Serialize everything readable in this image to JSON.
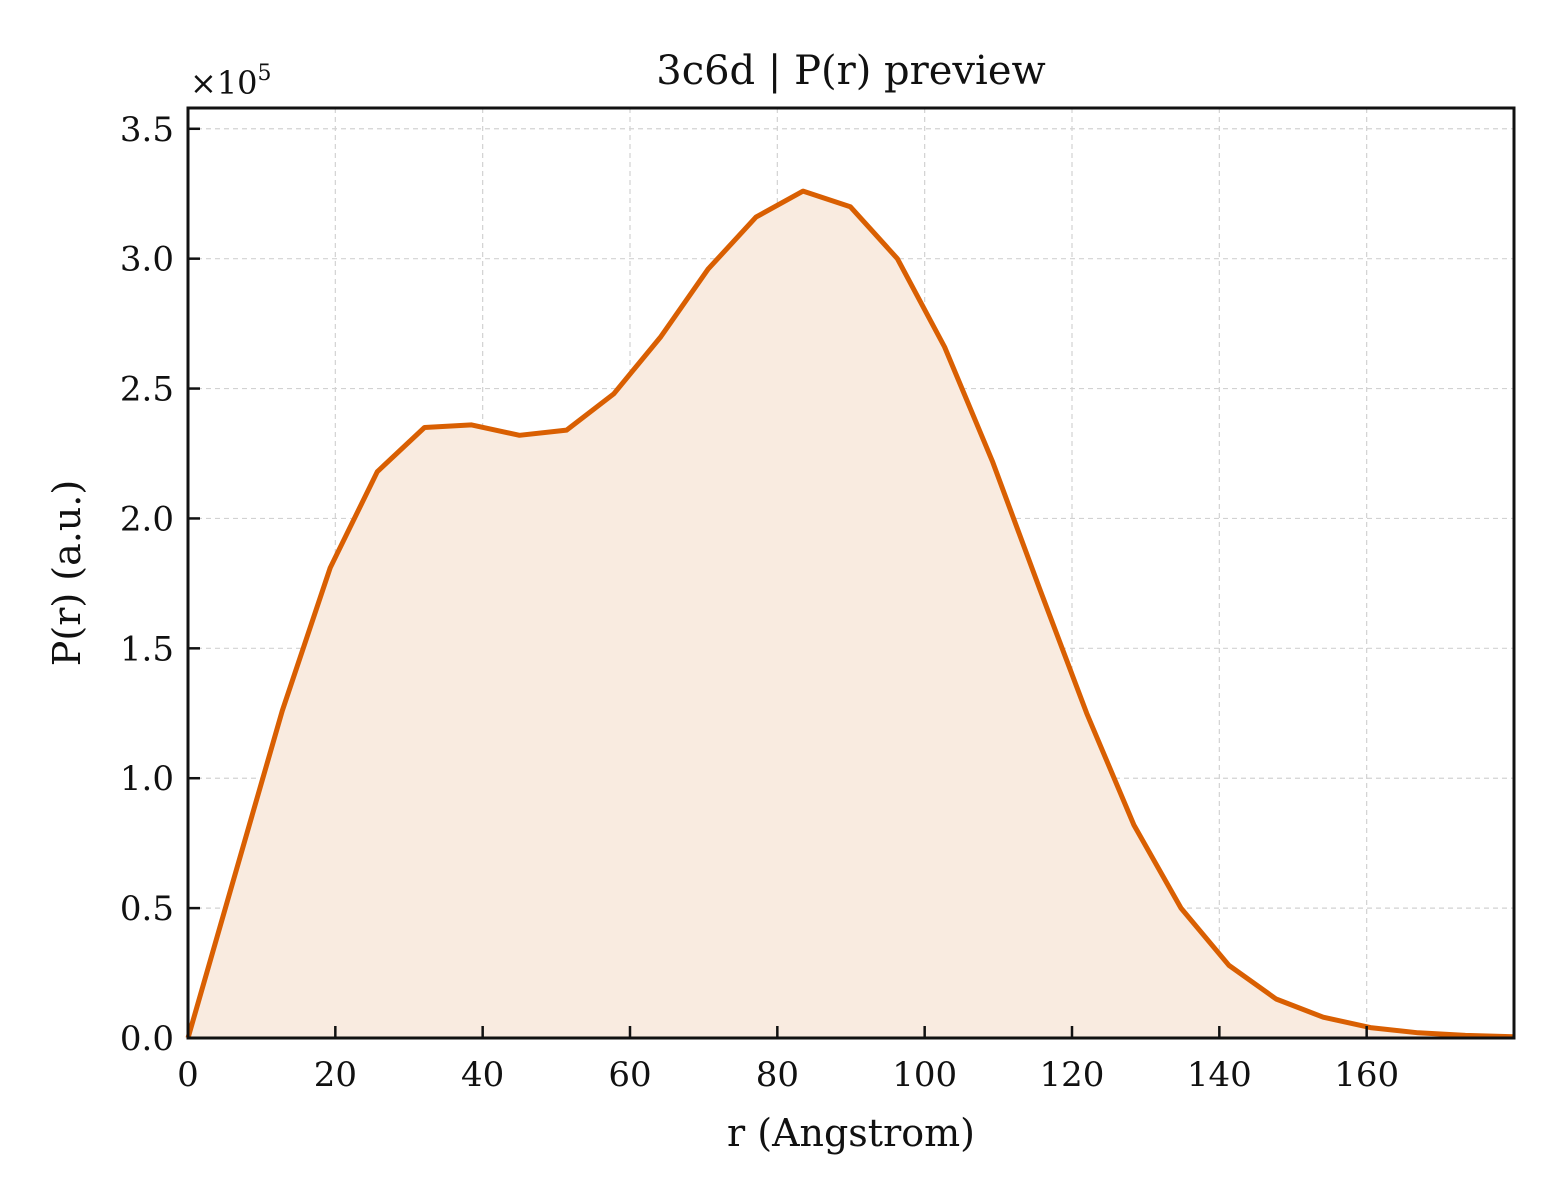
{
  "chart_data": {
    "type": "area",
    "title": "3c6d | P(r) preview",
    "xlabel": "r (Angstrom)",
    "ylabel": "P(r) (a.u.)",
    "y_multiplier": "×10",
    "y_multiplier_exponent": "5",
    "xlim": [
      0,
      180
    ],
    "ylim": [
      0,
      3.58
    ],
    "x_ticks": [
      0,
      20,
      40,
      60,
      80,
      100,
      120,
      140,
      160
    ],
    "x_tick_labels": [
      "0",
      "20",
      "40",
      "60",
      "80",
      "100",
      "120",
      "140",
      "160"
    ],
    "y_ticks": [
      0,
      0.5,
      1.0,
      1.5,
      2.0,
      2.5,
      3.0,
      3.5
    ],
    "y_tick_labels": [
      "0.0",
      "0.5",
      "1.0",
      "1.5",
      "2.0",
      "2.5",
      "3.0",
      "3.5"
    ],
    "grid": true,
    "line_color": "#d95f02",
    "fill_color": "#f9ebe0",
    "series": [
      {
        "x": [
          0,
          6.4,
          12.8,
          19.3,
          25.7,
          32.1,
          38.5,
          45.0,
          51.4,
          57.8,
          64.2,
          70.6,
          77.1,
          83.5,
          89.9,
          96.3,
          102.7,
          109.2,
          115.6,
          122.0,
          128.4,
          134.8,
          141.3,
          147.7,
          154.1,
          160.5,
          167.0,
          173.4,
          180
        ],
        "y": [
          0,
          0.63,
          1.26,
          1.81,
          2.18,
          2.35,
          2.36,
          2.32,
          2.34,
          2.48,
          2.7,
          2.96,
          3.16,
          3.26,
          3.2,
          3.0,
          2.66,
          2.22,
          1.73,
          1.25,
          0.82,
          0.5,
          0.28,
          0.15,
          0.08,
          0.04,
          0.02,
          0.01,
          0.005
        ]
      }
    ]
  }
}
